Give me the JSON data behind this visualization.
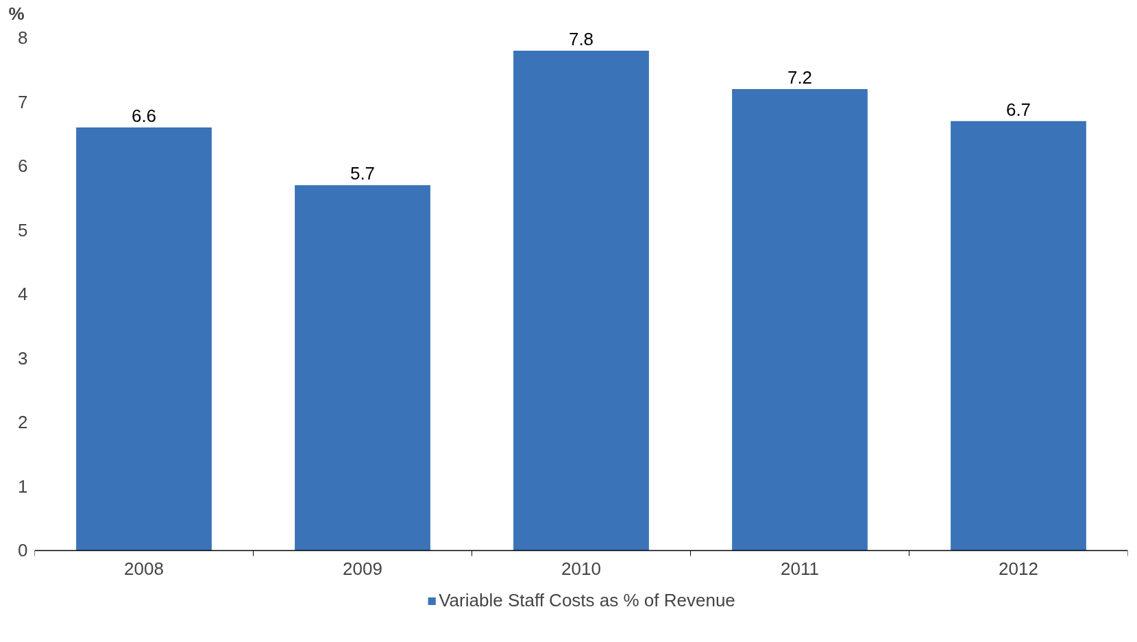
{
  "chart_data": {
    "type": "bar",
    "ylabel": "%",
    "categories": [
      "2008",
      "2009",
      "2010",
      "2011",
      "2012"
    ],
    "series": [
      {
        "name": "Variable Staff Costs as % of Revenue",
        "color": "#3a73b8",
        "values": [
          6.6,
          5.7,
          7.8,
          7.2,
          6.7
        ]
      }
    ],
    "ylim": [
      0,
      8
    ],
    "yticks": [
      0,
      1,
      2,
      3,
      4,
      5,
      6,
      7,
      8
    ],
    "data_labels": true,
    "legend": "bottom",
    "grid": false
  }
}
